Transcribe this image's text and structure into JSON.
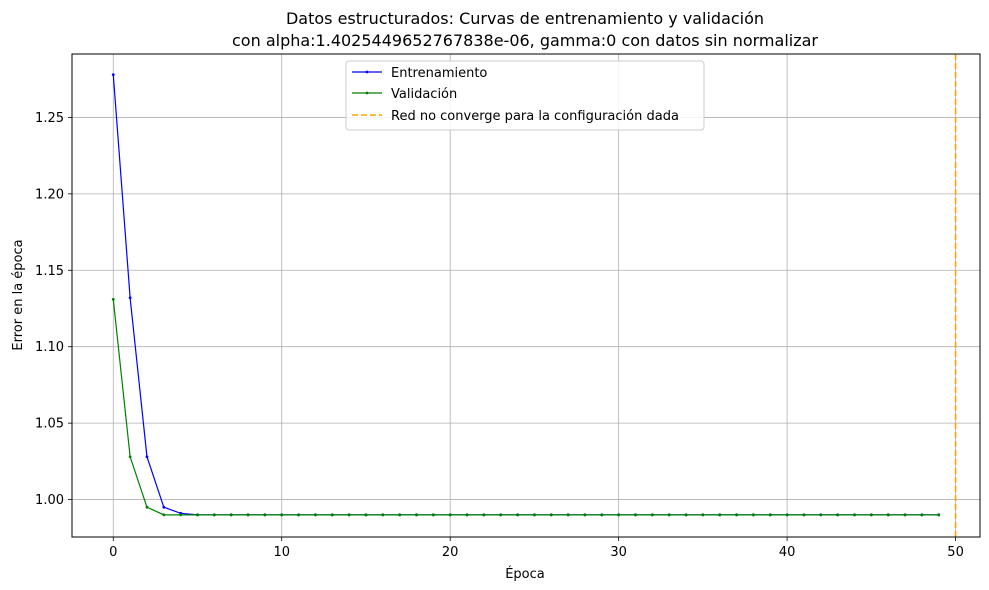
{
  "chart_data": {
    "type": "line",
    "title_line1": "Datos estructurados: Curvas de entrenamiento y validación",
    "title_line2": "con alpha:1.4025449652767838e-06, gamma:0 con datos sin normalizar",
    "xlabel": "Época",
    "ylabel": "Error en la época",
    "xlim": [
      -2.45,
      51.45
    ],
    "ylim": [
      0.9755,
      1.2915
    ],
    "xticks": [
      0,
      10,
      20,
      30,
      40,
      50
    ],
    "yticks": [
      1.0,
      1.05,
      1.1,
      1.15,
      1.2,
      1.25
    ],
    "ytick_labels": [
      "1.00",
      "1.05",
      "1.10",
      "1.15",
      "1.20",
      "1.25"
    ],
    "grid": true,
    "legend_position": "upper-center",
    "x": [
      0,
      1,
      2,
      3,
      4,
      5,
      6,
      7,
      8,
      9,
      10,
      11,
      12,
      13,
      14,
      15,
      16,
      17,
      18,
      19,
      20,
      21,
      22,
      23,
      24,
      25,
      26,
      27,
      28,
      29,
      30,
      31,
      32,
      33,
      34,
      35,
      36,
      37,
      38,
      39,
      40,
      41,
      42,
      43,
      44,
      45,
      46,
      47,
      48,
      49
    ],
    "series": [
      {
        "name": "Entrenamiento",
        "color": "#0000ff",
        "values": [
          1.278,
          1.132,
          1.028,
          0.995,
          0.991,
          0.99,
          0.99,
          0.99,
          0.99,
          0.99,
          0.99,
          0.99,
          0.99,
          0.99,
          0.99,
          0.99,
          0.99,
          0.99,
          0.99,
          0.99,
          0.99,
          0.99,
          0.99,
          0.99,
          0.99,
          0.99,
          0.99,
          0.99,
          0.99,
          0.99,
          0.99,
          0.99,
          0.99,
          0.99,
          0.99,
          0.99,
          0.99,
          0.99,
          0.99,
          0.99,
          0.99,
          0.99,
          0.99,
          0.99,
          0.99,
          0.99,
          0.99,
          0.99,
          0.99,
          0.99
        ]
      },
      {
        "name": "Validación",
        "color": "#008000",
        "values": [
          1.131,
          1.028,
          0.995,
          0.99,
          0.99,
          0.99,
          0.99,
          0.99,
          0.99,
          0.99,
          0.99,
          0.99,
          0.99,
          0.99,
          0.99,
          0.99,
          0.99,
          0.99,
          0.99,
          0.99,
          0.99,
          0.99,
          0.99,
          0.99,
          0.99,
          0.99,
          0.99,
          0.99,
          0.99,
          0.99,
          0.99,
          0.99,
          0.99,
          0.99,
          0.99,
          0.99,
          0.99,
          0.99,
          0.99,
          0.99,
          0.99,
          0.99,
          0.99,
          0.99,
          0.99,
          0.99,
          0.99,
          0.99,
          0.99,
          0.99
        ]
      }
    ],
    "vline": {
      "name": "Red no converge para la configuración dada",
      "x": 50,
      "color": "#ffa500",
      "style": "dashed"
    }
  }
}
